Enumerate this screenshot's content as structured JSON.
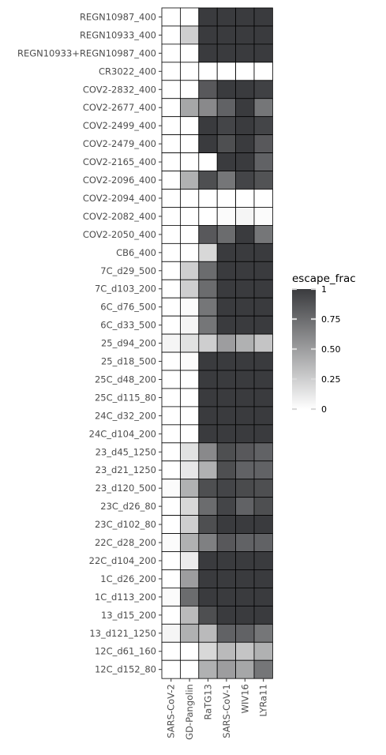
{
  "chart_data": {
    "type": "heatmap",
    "title": "",
    "xlabel": "",
    "ylabel": "",
    "x": [
      "SARS-CoV-2",
      "GD-Pangolin",
      "RaTG13",
      "SARS-CoV-1",
      "WIV16",
      "LYRa11"
    ],
    "y": [
      "REGN10987_400",
      "REGN10933_400",
      "REGN10933+REGN10987_400",
      "CR3022_400",
      "COV2-2832_400",
      "COV2-2677_400",
      "COV2-2499_400",
      "COV2-2479_400",
      "COV2-2165_400",
      "COV2-2096_400",
      "COV2-2094_400",
      "COV2-2082_400",
      "COV2-2050_400",
      "CB6_400",
      "7C_d29_500",
      "7C_d103_200",
      "6C_d76_500",
      "6C_d33_500",
      "25_d94_200",
      "25_d18_500",
      "25C_d48_200",
      "25C_d115_80",
      "24C_d32_200",
      "24C_d104_200",
      "23_d45_1250",
      "23_d21_1250",
      "23_d120_500",
      "23C_d26_80",
      "23C_d102_80",
      "22C_d28_200",
      "22C_d104_200",
      "1C_d26_200",
      "1C_d113_200",
      "13_d15_200",
      "13_d121_1250",
      "12C_d61_160",
      "12C_d152_80"
    ],
    "values": [
      [
        0.0,
        0.0,
        1.0,
        1.0,
        1.0,
        1.0
      ],
      [
        0.0,
        0.25,
        1.0,
        1.0,
        1.0,
        1.0
      ],
      [
        0.0,
        0.0,
        1.0,
        1.0,
        1.0,
        1.0
      ],
      [
        0.0,
        0.0,
        0.0,
        0.0,
        0.0,
        0.0
      ],
      [
        0.0,
        0.0,
        0.85,
        1.0,
        1.0,
        0.97
      ],
      [
        0.0,
        0.45,
        0.6,
        0.8,
        1.0,
        0.7
      ],
      [
        0.0,
        0.0,
        1.0,
        0.95,
        1.0,
        0.95
      ],
      [
        0.0,
        0.0,
        1.0,
        0.9,
        1.0,
        0.85
      ],
      [
        0.0,
        0.0,
        0.0,
        1.0,
        1.0,
        0.8
      ],
      [
        0.0,
        0.4,
        0.9,
        0.7,
        0.95,
        0.88
      ],
      [
        0.0,
        0.0,
        0.0,
        0.0,
        0.0,
        0.0
      ],
      [
        0.0,
        0.0,
        0.0,
        0.02,
        0.05,
        0.02
      ],
      [
        0.0,
        0.0,
        0.85,
        0.75,
        1.0,
        0.7
      ],
      [
        0.0,
        0.0,
        0.2,
        1.0,
        1.0,
        1.0
      ],
      [
        0.0,
        0.25,
        0.75,
        1.0,
        1.0,
        1.0
      ],
      [
        0.0,
        0.25,
        0.75,
        1.0,
        1.0,
        1.0
      ],
      [
        0.0,
        0.02,
        0.7,
        1.0,
        1.0,
        1.0
      ],
      [
        0.0,
        0.05,
        0.7,
        1.0,
        1.0,
        1.0
      ],
      [
        0.05,
        0.15,
        0.25,
        0.5,
        0.4,
        0.3
      ],
      [
        0.0,
        0.02,
        1.0,
        1.0,
        1.0,
        1.0
      ],
      [
        0.0,
        0.0,
        1.0,
        1.0,
        1.0,
        1.0
      ],
      [
        0.0,
        0.0,
        1.0,
        1.0,
        1.0,
        1.0
      ],
      [
        0.0,
        0.0,
        1.0,
        1.0,
        1.0,
        1.0
      ],
      [
        0.0,
        0.0,
        1.0,
        1.0,
        1.0,
        1.0
      ],
      [
        0.0,
        0.15,
        0.6,
        0.9,
        0.85,
        0.8
      ],
      [
        0.0,
        0.12,
        0.4,
        0.9,
        0.8,
        0.8
      ],
      [
        0.02,
        0.4,
        0.9,
        0.95,
        0.92,
        0.9
      ],
      [
        0.0,
        0.2,
        0.75,
        0.95,
        0.8,
        0.9
      ],
      [
        0.0,
        0.25,
        0.9,
        1.0,
        1.0,
        1.0
      ],
      [
        0.02,
        0.4,
        0.65,
        0.85,
        0.8,
        0.8
      ],
      [
        0.0,
        0.1,
        1.0,
        1.0,
        1.0,
        1.0
      ],
      [
        0.0,
        0.5,
        1.0,
        1.0,
        1.0,
        1.0
      ],
      [
        0.02,
        0.75,
        1.0,
        1.0,
        1.0,
        1.0
      ],
      [
        0.0,
        0.35,
        0.9,
        1.0,
        1.0,
        1.0
      ],
      [
        0.05,
        0.4,
        0.35,
        0.8,
        0.8,
        0.7
      ],
      [
        0.0,
        0.0,
        0.2,
        0.35,
        0.3,
        0.4
      ],
      [
        0.0,
        0.0,
        0.4,
        0.5,
        0.45,
        0.7
      ]
    ],
    "colorbar": {
      "title": "escape_frac",
      "ticks": [
        "0",
        "0.25",
        "0.50",
        "0.75",
        "1"
      ],
      "tick_values": [
        0,
        0.25,
        0.5,
        0.75,
        1
      ],
      "low_color": "#ffffff",
      "high_color": "#3a3b3e",
      "range": [
        0,
        1
      ]
    },
    "grid": false,
    "legend": "right"
  }
}
